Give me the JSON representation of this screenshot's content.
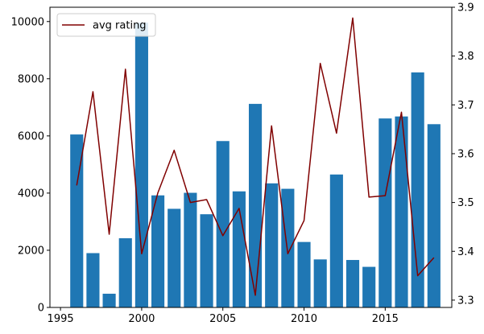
{
  "chart_data": {
    "type": "bar",
    "x": [
      1996,
      1997,
      1998,
      1999,
      2000,
      2001,
      2002,
      2003,
      2004,
      2005,
      2006,
      2007,
      2008,
      2009,
      2010,
      2011,
      2012,
      2013,
      2014,
      2015,
      2016,
      2017,
      2018
    ],
    "series": [
      {
        "type": "bar",
        "values": [
          6050,
          1900,
          480,
          2420,
          9960,
          3920,
          3450,
          4010,
          3260,
          5820,
          4060,
          7120,
          4340,
          4150,
          2290,
          1680,
          4650,
          1660,
          1420,
          6610,
          6680,
          8220,
          6410
        ],
        "color": "#1f77b4",
        "axis": "left"
      },
      {
        "type": "line",
        "name": "avg rating",
        "values": [
          3.535,
          3.727,
          3.435,
          3.773,
          3.395,
          3.52,
          3.607,
          3.5,
          3.506,
          3.432,
          3.488,
          3.31,
          3.657,
          3.395,
          3.463,
          3.785,
          3.642,
          3.878,
          3.511,
          3.514,
          3.685,
          3.35,
          3.387
        ],
        "color": "#800000",
        "axis": "right"
      }
    ],
    "xlim": [
      1994.35,
      2019.1
    ],
    "ylim_left": [
      0,
      10500
    ],
    "ylim_right": [
      3.285,
      3.9
    ],
    "xticks": [
      "1995",
      "2000",
      "2005",
      "2010",
      "2015"
    ],
    "yticks_left": [
      "0",
      "2000",
      "4000",
      "6000",
      "8000",
      "10000"
    ],
    "yticks_right": [
      "3.3",
      "3.4",
      "3.5",
      "3.6",
      "3.7",
      "3.8",
      "3.9"
    ],
    "legend": {
      "position": "top-left",
      "entries": [
        "avg rating"
      ]
    },
    "grid": false
  }
}
